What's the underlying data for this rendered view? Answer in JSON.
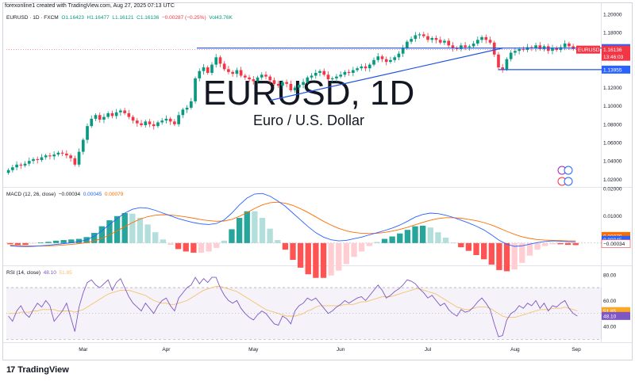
{
  "header": {
    "attribution": "forexonline1 created with TradingView.com, Aug 27, 2025 07:13 UTC"
  },
  "legend": {
    "symbol": "EURUSD · 1D · FXCM",
    "open": "O1.16423",
    "high": "H1.16477",
    "low": "L1.16121",
    "close": "C1.16136",
    "change": "−0.00287 (−0.25%)",
    "volume": "Vol43.76K"
  },
  "watermark": {
    "ticker": "EURUSD, 1D",
    "name": "Euro / U.S. Dollar"
  },
  "colors": {
    "up": "#089981",
    "down": "#f23645",
    "macd_line": "#2962ff",
    "signal_line": "#ff6d00",
    "rsi_line": "#7e57c2",
    "rsi_ma": "#f5c26b",
    "trend_line": "#1e53e5"
  },
  "macd_label": {
    "title": "MACD (12, 26, close)",
    "hist": "−0.00034",
    "macd": "0.00045",
    "signal": "0.00079"
  },
  "rsi_label": {
    "title": "RSI (14, close)",
    "rsi": "48.10",
    "ma": "51.85"
  },
  "footer": {
    "brand": "TradingView",
    "logo": "17"
  },
  "chart_data": [
    {
      "type": "candlestick",
      "title": "EURUSD, 1D",
      "subtitle": "Euro / U.S. Dollar",
      "ylim": [
        1.0125,
        1.2025
      ],
      "y_ticks": [
        "1.20000",
        "1.18000",
        "1.16000",
        "1.14000",
        "1.12000",
        "1.10000",
        "1.08000",
        "1.06000",
        "1.04000",
        "1.02000"
      ],
      "x_ticks": [
        "Mar",
        "Apr",
        "May",
        "Jun",
        "Jul",
        "Aug",
        "Sep"
      ],
      "close_path": [
        1.03,
        1.033,
        1.036,
        1.035,
        1.037,
        1.04,
        1.042,
        1.041,
        1.044,
        1.046,
        1.045,
        1.047,
        1.049,
        1.048,
        1.046,
        1.043,
        1.036,
        1.05,
        1.063,
        1.078,
        1.086,
        1.09,
        1.085,
        1.088,
        1.092,
        1.089,
        1.093,
        1.095,
        1.092,
        1.088,
        1.084,
        1.081,
        1.079,
        1.083,
        1.08,
        1.078,
        1.082,
        1.084,
        1.086,
        1.083,
        1.08,
        1.09,
        1.096,
        1.098,
        1.105,
        1.13,
        1.138,
        1.142,
        1.136,
        1.145,
        1.153,
        1.146,
        1.14,
        1.137,
        1.135,
        1.139,
        1.133,
        1.131,
        1.129,
        1.127,
        1.131,
        1.134,
        1.132,
        1.128,
        1.124,
        1.122,
        1.126,
        1.124,
        1.117,
        1.12,
        1.123,
        1.126,
        1.131,
        1.133,
        1.136,
        1.138,
        1.134,
        1.129,
        1.13,
        1.132,
        1.134,
        1.137,
        1.136,
        1.139,
        1.141,
        1.143,
        1.141,
        1.145,
        1.15,
        1.154,
        1.151,
        1.148,
        1.15,
        1.153,
        1.157,
        1.163,
        1.17,
        1.173,
        1.177,
        1.178,
        1.176,
        1.172,
        1.174,
        1.172,
        1.169,
        1.171,
        1.166,
        1.163,
        1.162,
        1.166,
        1.164,
        1.165,
        1.168,
        1.172,
        1.175,
        1.172,
        1.169,
        1.156,
        1.142,
        1.14,
        1.151,
        1.158,
        1.16,
        1.162,
        1.161,
        1.164,
        1.163,
        1.166,
        1.162,
        1.165,
        1.16,
        1.163,
        1.161,
        1.164,
        1.168,
        1.165,
        1.162,
        1.161
      ],
      "annotations": [
        {
          "label": "1.16305",
          "value": 1.16305,
          "kind": "horizontal line"
        },
        {
          "label": "EURUSD",
          "value": 1.16136,
          "kind": "symbol tag"
        },
        {
          "label": "1.16136",
          "value": 1.16136,
          "kind": "last price"
        },
        {
          "label": "13:46:03",
          "value": 1.16136,
          "kind": "countdown"
        },
        {
          "label": "1.13955",
          "value": 1.13955,
          "kind": "horizontal line"
        }
      ],
      "trend_line": {
        "from": [
          "May",
          1.106
        ],
        "to": [
          "Aug",
          1.164
        ]
      }
    },
    {
      "type": "macd",
      "title": "MACD (12, 26, close)",
      "ylim": [
        -0.0076,
        0.02
      ],
      "y_ticks": [
        "0.02000",
        "0.01000"
      ],
      "series": [
        {
          "name": "MACD",
          "values": [
            -0.001,
            -0.0012,
            -0.0013,
            -0.0012,
            -0.001,
            -0.0008,
            -0.0005,
            -0.0002,
            0.0001,
            0.0005,
            0.0012,
            0.0025,
            0.0045,
            0.0068,
            0.009,
            0.011,
            0.0124,
            0.013,
            0.0128,
            0.012,
            0.011,
            0.01,
            0.009,
            0.0082,
            0.0075,
            0.007,
            0.0068,
            0.0072,
            0.0085,
            0.011,
            0.014,
            0.0165,
            0.018,
            0.0182,
            0.0172,
            0.0155,
            0.0135,
            0.011,
            0.0085,
            0.006,
            0.0038,
            0.0022,
            0.0012,
            0.0008,
            0.001,
            0.0016,
            0.0022,
            0.003,
            0.0038,
            0.0046,
            0.0055,
            0.0066,
            0.008,
            0.0095,
            0.0105,
            0.011,
            0.0108,
            0.0102,
            0.0094,
            0.0084,
            0.0074,
            0.0062,
            0.0048,
            0.003,
            0.001,
            -0.0004,
            -0.0012,
            -0.001,
            -0.0004,
            0.0002,
            0.0006,
            0.0008,
            0.0007,
            0.0005,
            0.00045
          ]
        },
        {
          "name": "Signal",
          "values": [
            -0.0008,
            -0.0009,
            -0.001,
            -0.0011,
            -0.0011,
            -0.001,
            -0.0009,
            -0.0007,
            -0.0005,
            -0.0002,
            0.0002,
            0.0008,
            0.0017,
            0.003,
            0.0045,
            0.006,
            0.0075,
            0.0088,
            0.0097,
            0.0102,
            0.0104,
            0.0103,
            0.01,
            0.0096,
            0.0091,
            0.0086,
            0.0082,
            0.008,
            0.0081,
            0.0087,
            0.0098,
            0.0112,
            0.0127,
            0.014,
            0.0148,
            0.015,
            0.0146,
            0.0138,
            0.0126,
            0.0112,
            0.0096,
            0.008,
            0.0066,
            0.0054,
            0.0045,
            0.0039,
            0.0036,
            0.0035,
            0.0036,
            0.0039,
            0.0044,
            0.005,
            0.0058,
            0.0067,
            0.0076,
            0.0084,
            0.009,
            0.0093,
            0.0093,
            0.0091,
            0.0087,
            0.0082,
            0.0075,
            0.0066,
            0.0055,
            0.0043,
            0.0032,
            0.0023,
            0.0017,
            0.0013,
            0.0011,
            0.001,
            0.0009,
            0.0008,
            0.00079
          ]
        }
      ],
      "price_tags": [
        "0.00079",
        "0.00045",
        "−0.00034"
      ]
    },
    {
      "type": "line",
      "title": "RSI (14, close)",
      "ylim": [
        29,
        86
      ],
      "y_ticks": [
        "80.00",
        "60.00",
        "40.00"
      ],
      "bands": [
        30,
        70
      ],
      "series": [
        {
          "name": "RSI",
          "values": [
            48,
            44,
            52,
            56,
            50,
            47,
            53,
            58,
            55,
            60,
            56,
            44,
            48,
            52,
            58,
            47,
            36,
            55,
            66,
            74,
            76,
            72,
            70,
            73,
            76,
            68,
            74,
            77,
            70,
            63,
            58,
            55,
            52,
            58,
            54,
            50,
            56,
            60,
            62,
            56,
            52,
            62,
            66,
            70,
            72,
            78,
            73,
            77,
            74,
            78,
            78,
            70,
            64,
            60,
            58,
            60,
            54,
            50,
            47,
            45,
            49,
            52,
            50,
            46,
            42,
            41,
            48,
            46,
            42,
            52,
            56,
            58,
            62,
            60,
            62,
            58,
            54,
            50,
            52,
            55,
            57,
            60,
            58,
            60,
            62,
            63,
            60,
            64,
            68,
            72,
            68,
            62,
            64,
            67,
            69,
            72,
            76,
            75,
            73,
            69,
            66,
            62,
            64,
            60,
            56,
            58,
            53,
            50,
            48,
            53,
            51,
            52,
            55,
            59,
            62,
            58,
            53,
            42,
            32,
            33,
            45,
            50,
            52,
            56,
            54,
            58,
            56,
            60,
            54,
            58,
            52,
            56,
            55,
            58,
            60,
            54,
            50,
            48
          ]
        },
        {
          "name": "RSI-based MA",
          "values": [
            50,
            50,
            50,
            51,
            51,
            51,
            52,
            52,
            53,
            53,
            53,
            53,
            52,
            52,
            52,
            52,
            51,
            52,
            53,
            55,
            57,
            59,
            61,
            63,
            65,
            66,
            67,
            68,
            68,
            68,
            67,
            66,
            65,
            64,
            62,
            60,
            59,
            58,
            58,
            57,
            57,
            58,
            59,
            60,
            62,
            64,
            66,
            68,
            69,
            70,
            71,
            71,
            70,
            69,
            68,
            67,
            65,
            63,
            61,
            59,
            57,
            55,
            53,
            52,
            51,
            50,
            49,
            48,
            48,
            48,
            49,
            50,
            52,
            53,
            55,
            56,
            56,
            56,
            56,
            56,
            56,
            57,
            57,
            57,
            58,
            59,
            59,
            60,
            61,
            62,
            63,
            63,
            63,
            64,
            65,
            66,
            67,
            68,
            69,
            69,
            68,
            67,
            66,
            65,
            63,
            61,
            59,
            57,
            55,
            54,
            53,
            53,
            54,
            55,
            55,
            55,
            54,
            52,
            50,
            48,
            47,
            47,
            47,
            48,
            49,
            50,
            51,
            52,
            53,
            53,
            53,
            54,
            54,
            54,
            55,
            54,
            53,
            52
          ]
        }
      ],
      "price_tags": [
        "51.85",
        "48.10"
      ]
    }
  ]
}
